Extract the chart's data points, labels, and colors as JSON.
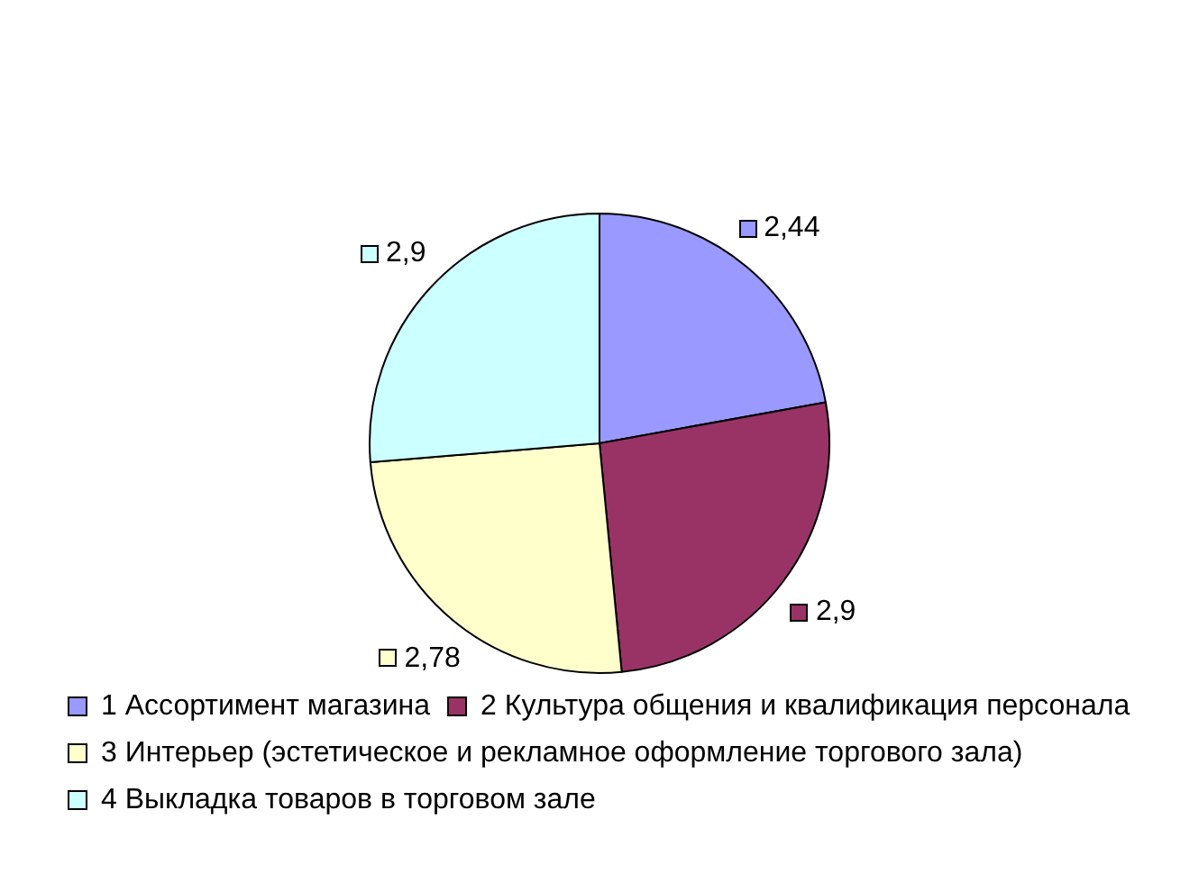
{
  "chart_data": {
    "type": "pie",
    "categories": [
      "1 Ассортимент магазина",
      "2 Культура общения и квалификация персонала",
      "3 Интерьер (эстетическое и рекламное оформление торгового зала)",
      "4 Выкладка товаров в торговом зале"
    ],
    "values": [
      2.44,
      2.9,
      2.78,
      2.9
    ],
    "value_labels": [
      "2,44",
      "2,9",
      "2,78",
      "2,9"
    ],
    "colors": [
      "#9999ff",
      "#993366",
      "#ffffcc",
      "#ccffff"
    ],
    "legend": "bottom"
  }
}
